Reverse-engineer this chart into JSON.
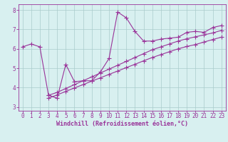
{
  "x": [
    0,
    1,
    2,
    3,
    4,
    5,
    6,
    7,
    8,
    9,
    10,
    11,
    12,
    13,
    14,
    15,
    16,
    17,
    18,
    19,
    20,
    21,
    22,
    23
  ],
  "y_main": [
    6.1,
    6.25,
    6.1,
    3.6,
    3.45,
    5.2,
    4.3,
    4.35,
    4.35,
    4.8,
    5.5,
    7.9,
    7.6,
    6.9,
    6.4,
    6.4,
    6.5,
    6.55,
    6.6,
    6.85,
    6.9,
    6.85,
    7.1,
    7.2
  ],
  "x_line23": [
    3,
    4,
    5,
    6,
    7,
    8,
    9,
    10,
    11,
    12,
    13,
    14,
    15,
    16,
    17,
    18,
    19,
    20,
    21,
    22,
    23
  ],
  "y_line2": [
    3.6,
    3.75,
    3.95,
    4.15,
    4.35,
    4.55,
    4.75,
    4.95,
    5.15,
    5.35,
    5.55,
    5.75,
    5.95,
    6.1,
    6.25,
    6.4,
    6.52,
    6.62,
    6.72,
    6.82,
    6.95
  ],
  "y_line3": [
    3.45,
    3.62,
    3.8,
    3.98,
    4.15,
    4.33,
    4.5,
    4.68,
    4.85,
    5.03,
    5.2,
    5.38,
    5.55,
    5.7,
    5.85,
    6.0,
    6.12,
    6.22,
    6.35,
    6.48,
    6.6
  ],
  "line_color": "#993399",
  "bg_color": "#d8f0f0",
  "grid_color": "#aacccc",
  "xlabel": "Windchill (Refroidissement éolien,°C)",
  "ylim": [
    2.8,
    8.3
  ],
  "xlim": [
    -0.5,
    23.5
  ],
  "yticks": [
    3,
    4,
    5,
    6,
    7,
    8
  ],
  "xticks": [
    0,
    1,
    2,
    3,
    4,
    5,
    6,
    7,
    8,
    9,
    10,
    11,
    12,
    13,
    14,
    15,
    16,
    17,
    18,
    19,
    20,
    21,
    22,
    23
  ],
  "marker": "+",
  "markersize": 4,
  "linewidth": 0.8,
  "tick_fontsize": 5.5,
  "xlabel_fontsize": 6.0
}
